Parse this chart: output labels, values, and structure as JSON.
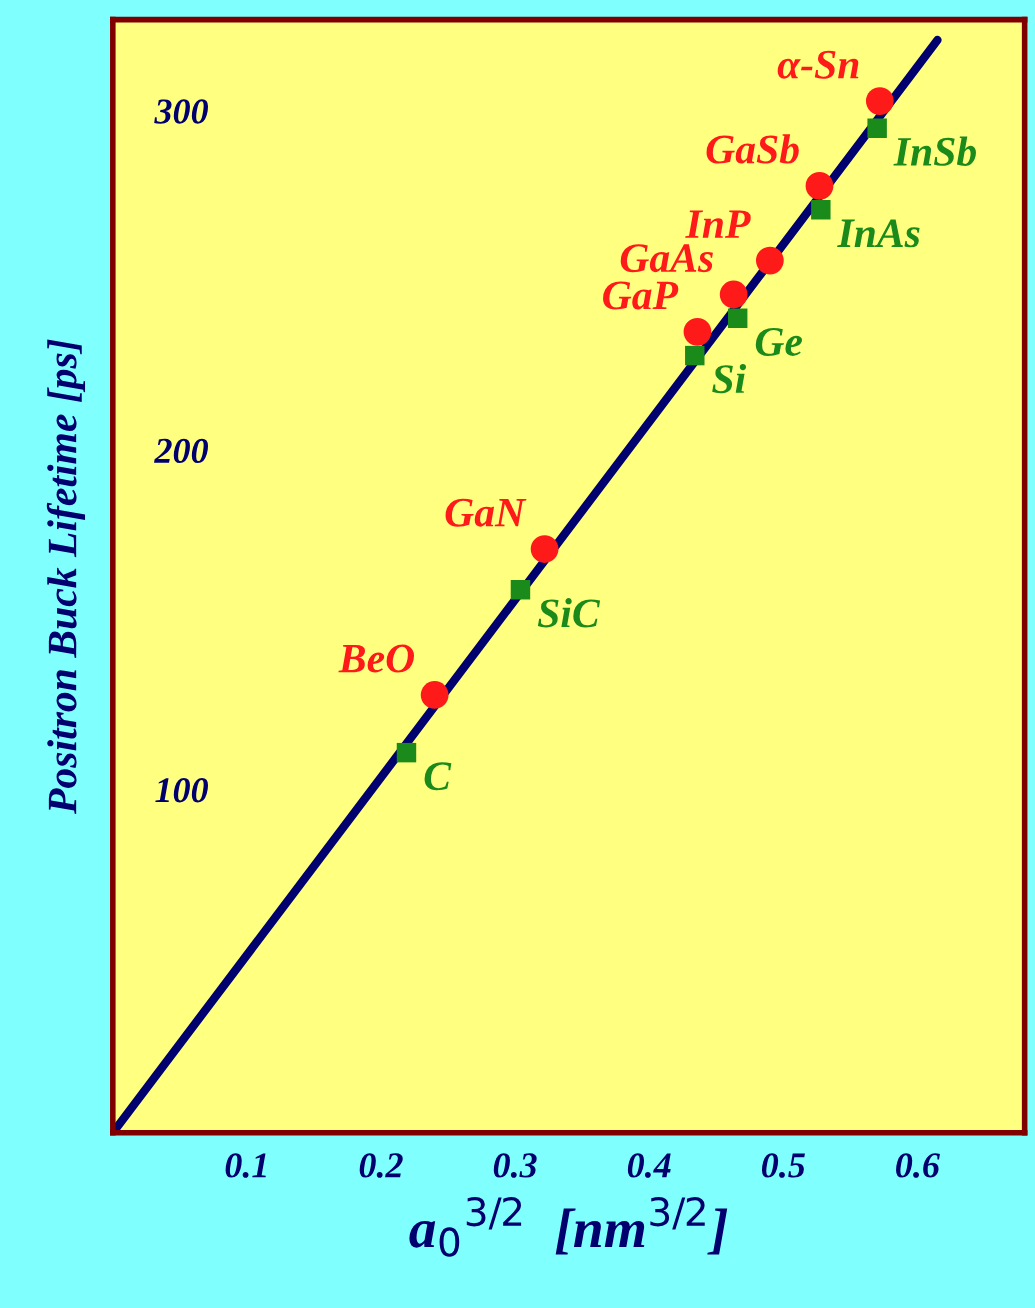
{
  "chart_data": {
    "type": "scatter",
    "xlabel": "a$_{0}$$^{3/2}$  [nm$^{3/2}$]",
    "ylabel": "Positron Buck Lifetime [ps]",
    "xlim": [
      0,
      0.68
    ],
    "ylim": [
      0,
      328
    ],
    "xticks": [
      0.1,
      0.2,
      0.3,
      0.4,
      0.5,
      0.6
    ],
    "yticks": [
      100,
      200,
      300
    ],
    "grid": false,
    "legend": false,
    "series": [
      {
        "type": "line",
        "color": "#00006e",
        "x": [
          0,
          0.615
        ],
        "values": [
          0,
          322
        ],
        "marker": "none",
        "line_style": "solid"
      },
      {
        "color": "#ff1a1a",
        "marker": "circle",
        "x": [
          0.572,
          0.527,
          0.49,
          0.463,
          0.436,
          0.322,
          0.24
        ],
        "values": [
          304,
          279,
          257,
          247,
          236,
          172,
          129
        ],
        "value_labels": [
          "α-Sn",
          "GaSb",
          "InP",
          "GaAs",
          "GaP",
          "GaN",
          "BeO"
        ]
      },
      {
        "color": "#1a8a1a",
        "marker": "square",
        "x": [
          0.57,
          0.528,
          0.466,
          0.434,
          0.304,
          0.219
        ],
        "values": [
          296,
          272,
          240,
          229,
          160,
          112
        ],
        "value_labels": [
          "InSb",
          "InAs",
          "Ge",
          "Si",
          "SiC",
          "C"
        ]
      }
    ]
  }
}
